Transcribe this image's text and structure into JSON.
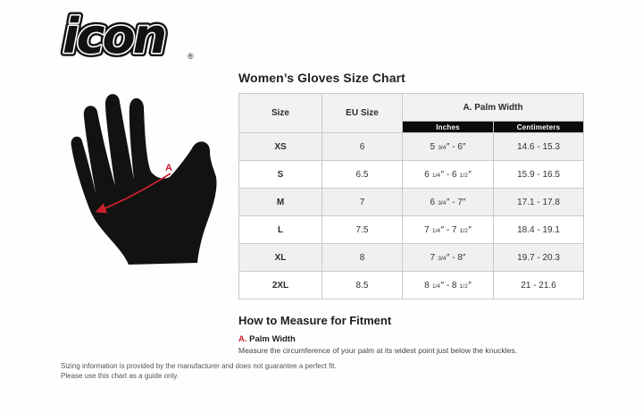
{
  "brand": {
    "logo_text": "icon",
    "registered_mark": "®"
  },
  "hand_figure": {
    "measure_label": "A"
  },
  "size_chart": {
    "title": "Women’s Gloves Size Chart",
    "headers": {
      "size": "Size",
      "eu_size": "EU Size",
      "palm_width": "A. Palm Width",
      "inches": "Inches",
      "centimeters": "Centimeters"
    },
    "rows": [
      {
        "size": "XS",
        "eu_size": "6",
        "inches_from": {
          "whole": "5",
          "frac": "3/4"
        },
        "inches_to": {
          "whole": "6",
          "frac": ""
        },
        "centimeters": "14.6 - 15.3"
      },
      {
        "size": "S",
        "eu_size": "6.5",
        "inches_from": {
          "whole": "6",
          "frac": "1/4"
        },
        "inches_to": {
          "whole": "6",
          "frac": "1/2"
        },
        "centimeters": "15.9 - 16.5"
      },
      {
        "size": "M",
        "eu_size": "7",
        "inches_from": {
          "whole": "6",
          "frac": "3/4"
        },
        "inches_to": {
          "whole": "7",
          "frac": ""
        },
        "centimeters": "17.1 - 17.8"
      },
      {
        "size": "L",
        "eu_size": "7.5",
        "inches_from": {
          "whole": "7",
          "frac": "1/4"
        },
        "inches_to": {
          "whole": "7",
          "frac": "1/2"
        },
        "centimeters": "18.4 - 19.1"
      },
      {
        "size": "XL",
        "eu_size": "8",
        "inches_from": {
          "whole": "7",
          "frac": "3/4"
        },
        "inches_to": {
          "whole": "8",
          "frac": ""
        },
        "centimeters": "19.7 - 20.3"
      },
      {
        "size": "2XL",
        "eu_size": "8.5",
        "inches_from": {
          "whole": "8",
          "frac": "1/4"
        },
        "inches_to": {
          "whole": "8",
          "frac": "1/2"
        },
        "centimeters": "21 - 21.6"
      }
    ]
  },
  "measure_guide": {
    "title": "How to Measure for Fitment",
    "item": {
      "letter": "A.",
      "label": "Palm Width",
      "description": "Measure the circumference of your palm at its widest point just below the knuckles."
    }
  },
  "disclaimer": {
    "line1": "Sizing information is provided by the manufacturer and does not guarantee a perfect fit.",
    "line2": "Please use this chart as a guide only."
  },
  "colors": {
    "accent_red": "#cc2030",
    "table_header_black": "#0a0a0a",
    "row_stripe_gray": "#f0f0f0"
  }
}
